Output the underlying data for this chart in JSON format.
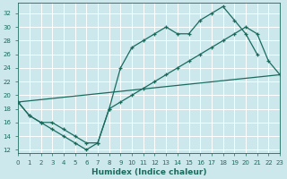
{
  "xlabel": "Humidex (Indice chaleur)",
  "background_color": "#cce8ed",
  "line_color": "#1a6b5e",
  "grid_color": "#ffffff",
  "xlim": [
    0,
    23
  ],
  "ylim": [
    11.5,
    33.5
  ],
  "xticks": [
    0,
    1,
    2,
    3,
    4,
    5,
    6,
    7,
    8,
    9,
    10,
    11,
    12,
    13,
    14,
    15,
    16,
    17,
    18,
    19,
    20,
    21,
    22,
    23
  ],
  "yticks": [
    12,
    14,
    16,
    18,
    20,
    22,
    24,
    26,
    28,
    30,
    32
  ],
  "line1_x": [
    0,
    1,
    2,
    3,
    4,
    5,
    6,
    7,
    8,
    9,
    10,
    11,
    12,
    13,
    14,
    15,
    16,
    17,
    18,
    19,
    20,
    21
  ],
  "line1_y": [
    19,
    17,
    16,
    16,
    15,
    14,
    13,
    13,
    18,
    24,
    27,
    28,
    29,
    30,
    29,
    29,
    31,
    32,
    33,
    31,
    29,
    26
  ],
  "line2_x": [
    0,
    1,
    2,
    3,
    4,
    5,
    6,
    7,
    8,
    9,
    10,
    11,
    12,
    13,
    14,
    15,
    16,
    17,
    18,
    19,
    20,
    21,
    22,
    23
  ],
  "line2_y": [
    19,
    17,
    16,
    15,
    14,
    13,
    12,
    13,
    18,
    19,
    20,
    21,
    22,
    23,
    24,
    25,
    26,
    27,
    28,
    29,
    30,
    29,
    25,
    23
  ],
  "line3_x": [
    0,
    23
  ],
  "line3_y": [
    19,
    23
  ]
}
